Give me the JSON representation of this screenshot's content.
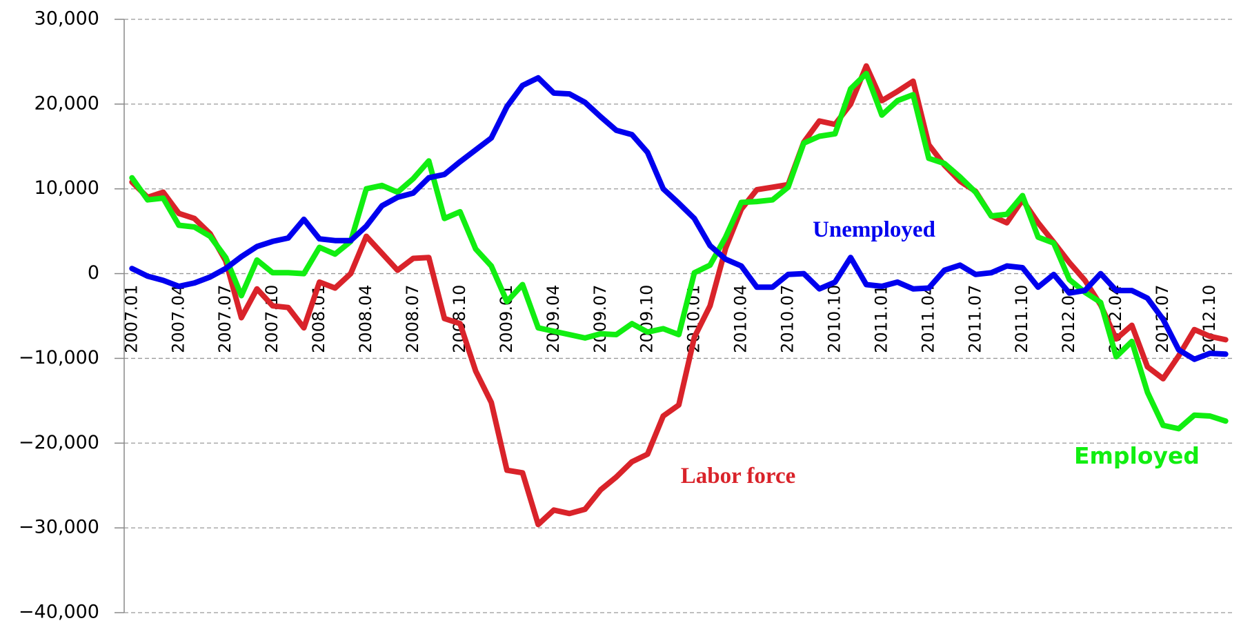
{
  "chart_data": {
    "type": "line",
    "categories": [
      "2007.01",
      null,
      null,
      "2007.04",
      null,
      null,
      "2007.07",
      null,
      null,
      "2007.10",
      null,
      null,
      "2008.01",
      null,
      null,
      "2008.04",
      null,
      null,
      "2008.07",
      null,
      null,
      "2008.10",
      null,
      null,
      "2009.01",
      null,
      null,
      "2009.04",
      null,
      null,
      "2009.07",
      null,
      null,
      "2009.10",
      null,
      null,
      "2010.01",
      null,
      null,
      "2010.04",
      null,
      null,
      "2010.07",
      null,
      null,
      "2010.10",
      null,
      null,
      "2011.01",
      null,
      null,
      "2011.04",
      null,
      null,
      "2011.07",
      null,
      null,
      "2011.10",
      null,
      null,
      "2012.01",
      null,
      null,
      "2012.04",
      null,
      null,
      "2012.07",
      null,
      null,
      "2012.10",
      null
    ],
    "series": [
      {
        "name": "Labor force",
        "color": "#d9232a",
        "values": [
          10800,
          9000,
          9600,
          7100,
          6500,
          4700,
          1500,
          -5200,
          -1800,
          -3800,
          -4000,
          -6400,
          -1000,
          -1700,
          0,
          4400,
          2400,
          400,
          1800,
          1900,
          -5300,
          -5900,
          -11500,
          -15200,
          -23200,
          -23500,
          -29600,
          -27900,
          -28300,
          -27800,
          -25500,
          -24000,
          -22200,
          -21300,
          -16800,
          -15500,
          -7500,
          -3800,
          3000,
          7600,
          9900,
          10200,
          10500,
          15500,
          18000,
          17600,
          20000,
          24500,
          20400,
          21500,
          22700,
          15200,
          12800,
          10900,
          9700,
          6800,
          6000,
          8700,
          6000,
          3700,
          1300,
          -800,
          -3700,
          -7700,
          -6100,
          -11000,
          -12400,
          -9700,
          -6600,
          -7400,
          -7800
        ]
      },
      {
        "name": "Employed",
        "color": "#11ee11",
        "values": [
          11300,
          8700,
          8900,
          5700,
          5500,
          4400,
          1900,
          -2600,
          1600,
          100,
          100,
          0,
          3100,
          2300,
          3800,
          10000,
          10400,
          9600,
          11200,
          13300,
          6500,
          7300,
          2900,
          900,
          -3300,
          -1300,
          -6400,
          -6800,
          -7200,
          -7600,
          -7100,
          -7200,
          -5900,
          -6900,
          -6500,
          -7200,
          100,
          1000,
          4300,
          8400,
          8500,
          8700,
          10200,
          15400,
          16200,
          16500,
          21800,
          23600,
          18700,
          20400,
          21100,
          13600,
          13000,
          11400,
          9600,
          6800,
          7000,
          9200,
          4300,
          3600,
          -700,
          -2200,
          -3400,
          -9800,
          -8000,
          -14000,
          -17900,
          -18300,
          -16700,
          -16800,
          -17400
        ]
      },
      {
        "name": "Unemployed",
        "color": "#0000ee",
        "values": [
          600,
          -300,
          -800,
          -1500,
          -1100,
          -400,
          600,
          2000,
          3200,
          3800,
          4200,
          6400,
          4100,
          3900,
          3900,
          5600,
          8000,
          9000,
          9500,
          11300,
          11700,
          13200,
          14600,
          16000,
          19700,
          22200,
          23100,
          21300,
          21200,
          20200,
          18500,
          16900,
          16400,
          14300,
          10000,
          8300,
          6500,
          3300,
          1700,
          900,
          -1600,
          -1600,
          -100,
          0,
          -1800,
          -1000,
          1900,
          -1300,
          -1500,
          -1000,
          -1800,
          -1700,
          400,
          1000,
          -100,
          100,
          900,
          700,
          -1600,
          -100,
          -2300,
          -2000,
          0,
          -2000,
          -2000,
          -2900,
          -5400,
          -9000,
          -10100,
          -9400,
          -9500
        ]
      }
    ],
    "ylim": [
      -40000,
      30000
    ],
    "yticks": [
      {
        "value": -40000,
        "label": "−40,000"
      },
      {
        "value": -30000,
        "label": "−30,000"
      },
      {
        "value": -20000,
        "label": "−20,000"
      },
      {
        "value": -10000,
        "label": "−10,000"
      },
      0,
      {
        "value": 10000,
        "label": "10,000"
      },
      {
        "value": 20000,
        "label": "20,000"
      },
      {
        "value": 30000,
        "label": "30,000"
      }
    ],
    "grid": true
  }
}
